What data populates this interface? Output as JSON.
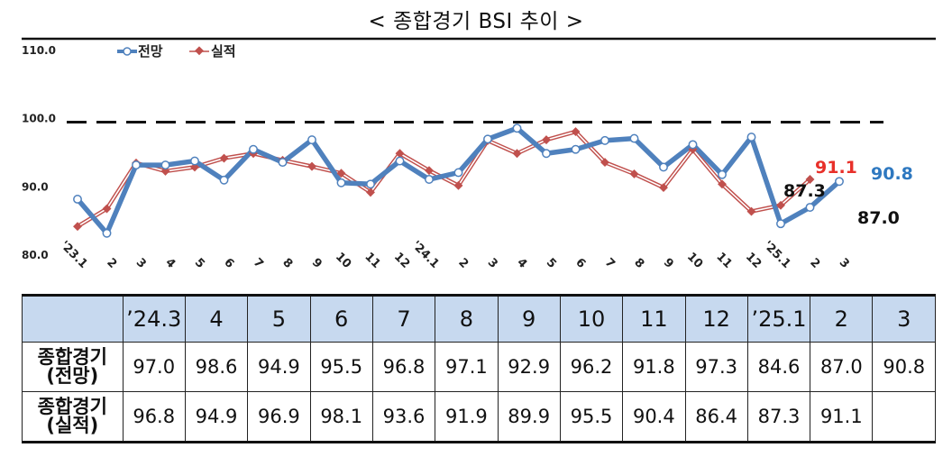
{
  "title": "< 종합경기 BSI 추이 >",
  "chart_data": {
    "type": "line",
    "ylim": [
      80,
      110
    ],
    "yticks": [
      "80.0",
      "90.0",
      "100.0",
      "110.0"
    ],
    "ytick_values": [
      80,
      90,
      100,
      110
    ],
    "reference_line": 99.5,
    "categories": [
      "'23.1",
      "2",
      "3",
      "4",
      "5",
      "6",
      "7",
      "8",
      "9",
      "10",
      "11",
      "12",
      "'24.1",
      "2",
      "3",
      "4",
      "5",
      "6",
      "7",
      "8",
      "9",
      "10",
      "11",
      "12",
      "'25.1",
      "2",
      "3"
    ],
    "series": [
      {
        "name": "전망",
        "color": "#4f81bd",
        "values": [
          88.2,
          83.2,
          93.2,
          93.2,
          93.8,
          91.0,
          95.5,
          93.6,
          96.9,
          90.6,
          90.4,
          93.8,
          91.1,
          92.1,
          97.0,
          98.6,
          94.9,
          95.5,
          96.8,
          97.1,
          92.9,
          96.2,
          91.8,
          97.3,
          84.6,
          87.0,
          90.8
        ]
      },
      {
        "name": "실적",
        "color": "#c0504d",
        "values": [
          84.2,
          86.8,
          93.5,
          92.3,
          92.9,
          94.2,
          94.9,
          93.9,
          93.0,
          92.0,
          89.2,
          94.9,
          92.4,
          90.2,
          96.8,
          94.9,
          96.9,
          98.1,
          93.6,
          91.9,
          89.9,
          95.5,
          90.4,
          86.4,
          87.3,
          91.1,
          null
        ]
      }
    ],
    "annotations": [
      {
        "text": "91.1",
        "color": "#e8302a"
      },
      {
        "text": "90.8",
        "color": "#2e78c0"
      },
      {
        "text": "87.3",
        "color": "#111111"
      },
      {
        "text": "87.0",
        "color": "#111111"
      }
    ]
  },
  "table": {
    "header": [
      "",
      "’24.3",
      "4",
      "5",
      "6",
      "7",
      "8",
      "9",
      "10",
      "11",
      "12",
      "’25.1",
      "2",
      "3"
    ],
    "rows": [
      {
        "label1": "종합경기",
        "label2": "(전망)",
        "values": [
          "97.0",
          "98.6",
          "94.9",
          "95.5",
          "96.8",
          "97.1",
          "92.9",
          "96.2",
          "91.8",
          "97.3",
          "84.6",
          "87.0",
          "90.8"
        ]
      },
      {
        "label1": "종합경기",
        "label2": "(실적)",
        "values": [
          "96.8",
          "94.9",
          "96.9",
          "98.1",
          "93.6",
          "91.9",
          "89.9",
          "95.5",
          "90.4",
          "86.4",
          "87.3",
          "91.1",
          ""
        ]
      }
    ]
  }
}
